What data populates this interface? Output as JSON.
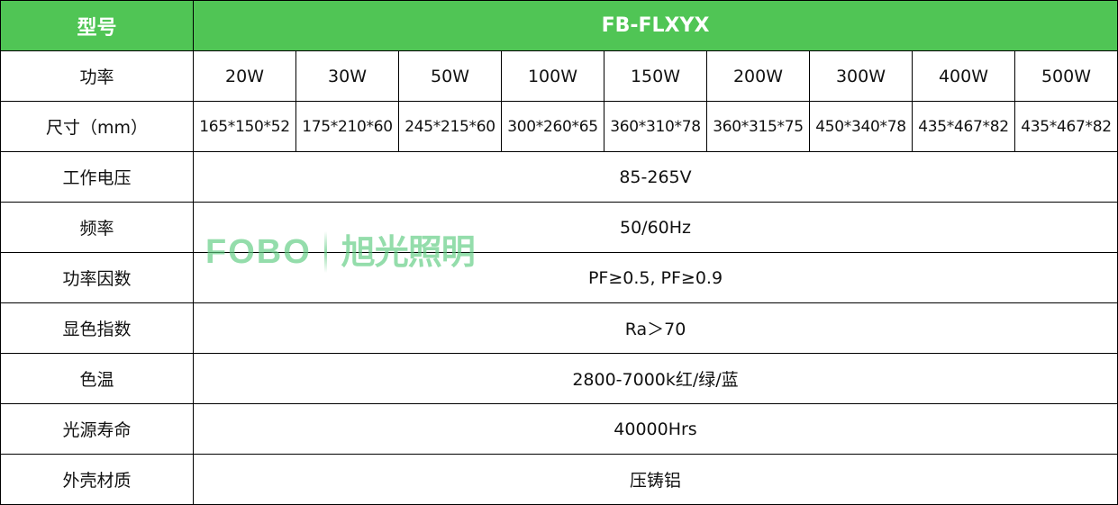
{
  "header": {
    "label": "型号",
    "model": "FB-FLXYX"
  },
  "power": {
    "label": "功率",
    "values": [
      "20W",
      "30W",
      "50W",
      "100W",
      "150W",
      "200W",
      "300W",
      "400W",
      "500W"
    ]
  },
  "size": {
    "label": "尺寸（mm）",
    "values": [
      "165*150*52",
      "175*210*60",
      "245*215*60",
      "300*260*65",
      "360*310*78",
      "360*315*75",
      "450*340*78",
      "435*467*82",
      "435*467*82"
    ]
  },
  "rows": [
    {
      "label": "工作电压",
      "value": "85-265V"
    },
    {
      "label": "频率",
      "value": "50/60Hz"
    },
    {
      "label": "功率因数",
      "value": "PF≥0.5, PF≥0.9"
    },
    {
      "label": "显色指数",
      "value": "Ra＞70"
    },
    {
      "label": "色温",
      "value": "2800-7000k红/绿/蓝"
    },
    {
      "label": "光源寿命",
      "value": "40000Hrs"
    },
    {
      "label": "外壳材质",
      "value": "压铸铝"
    }
  ],
  "watermark": {
    "brand_en": "FOBO",
    "brand_zh": "旭光照明"
  },
  "colors": {
    "header_bg": "#50c555",
    "watermark": "#5ccb7f"
  }
}
